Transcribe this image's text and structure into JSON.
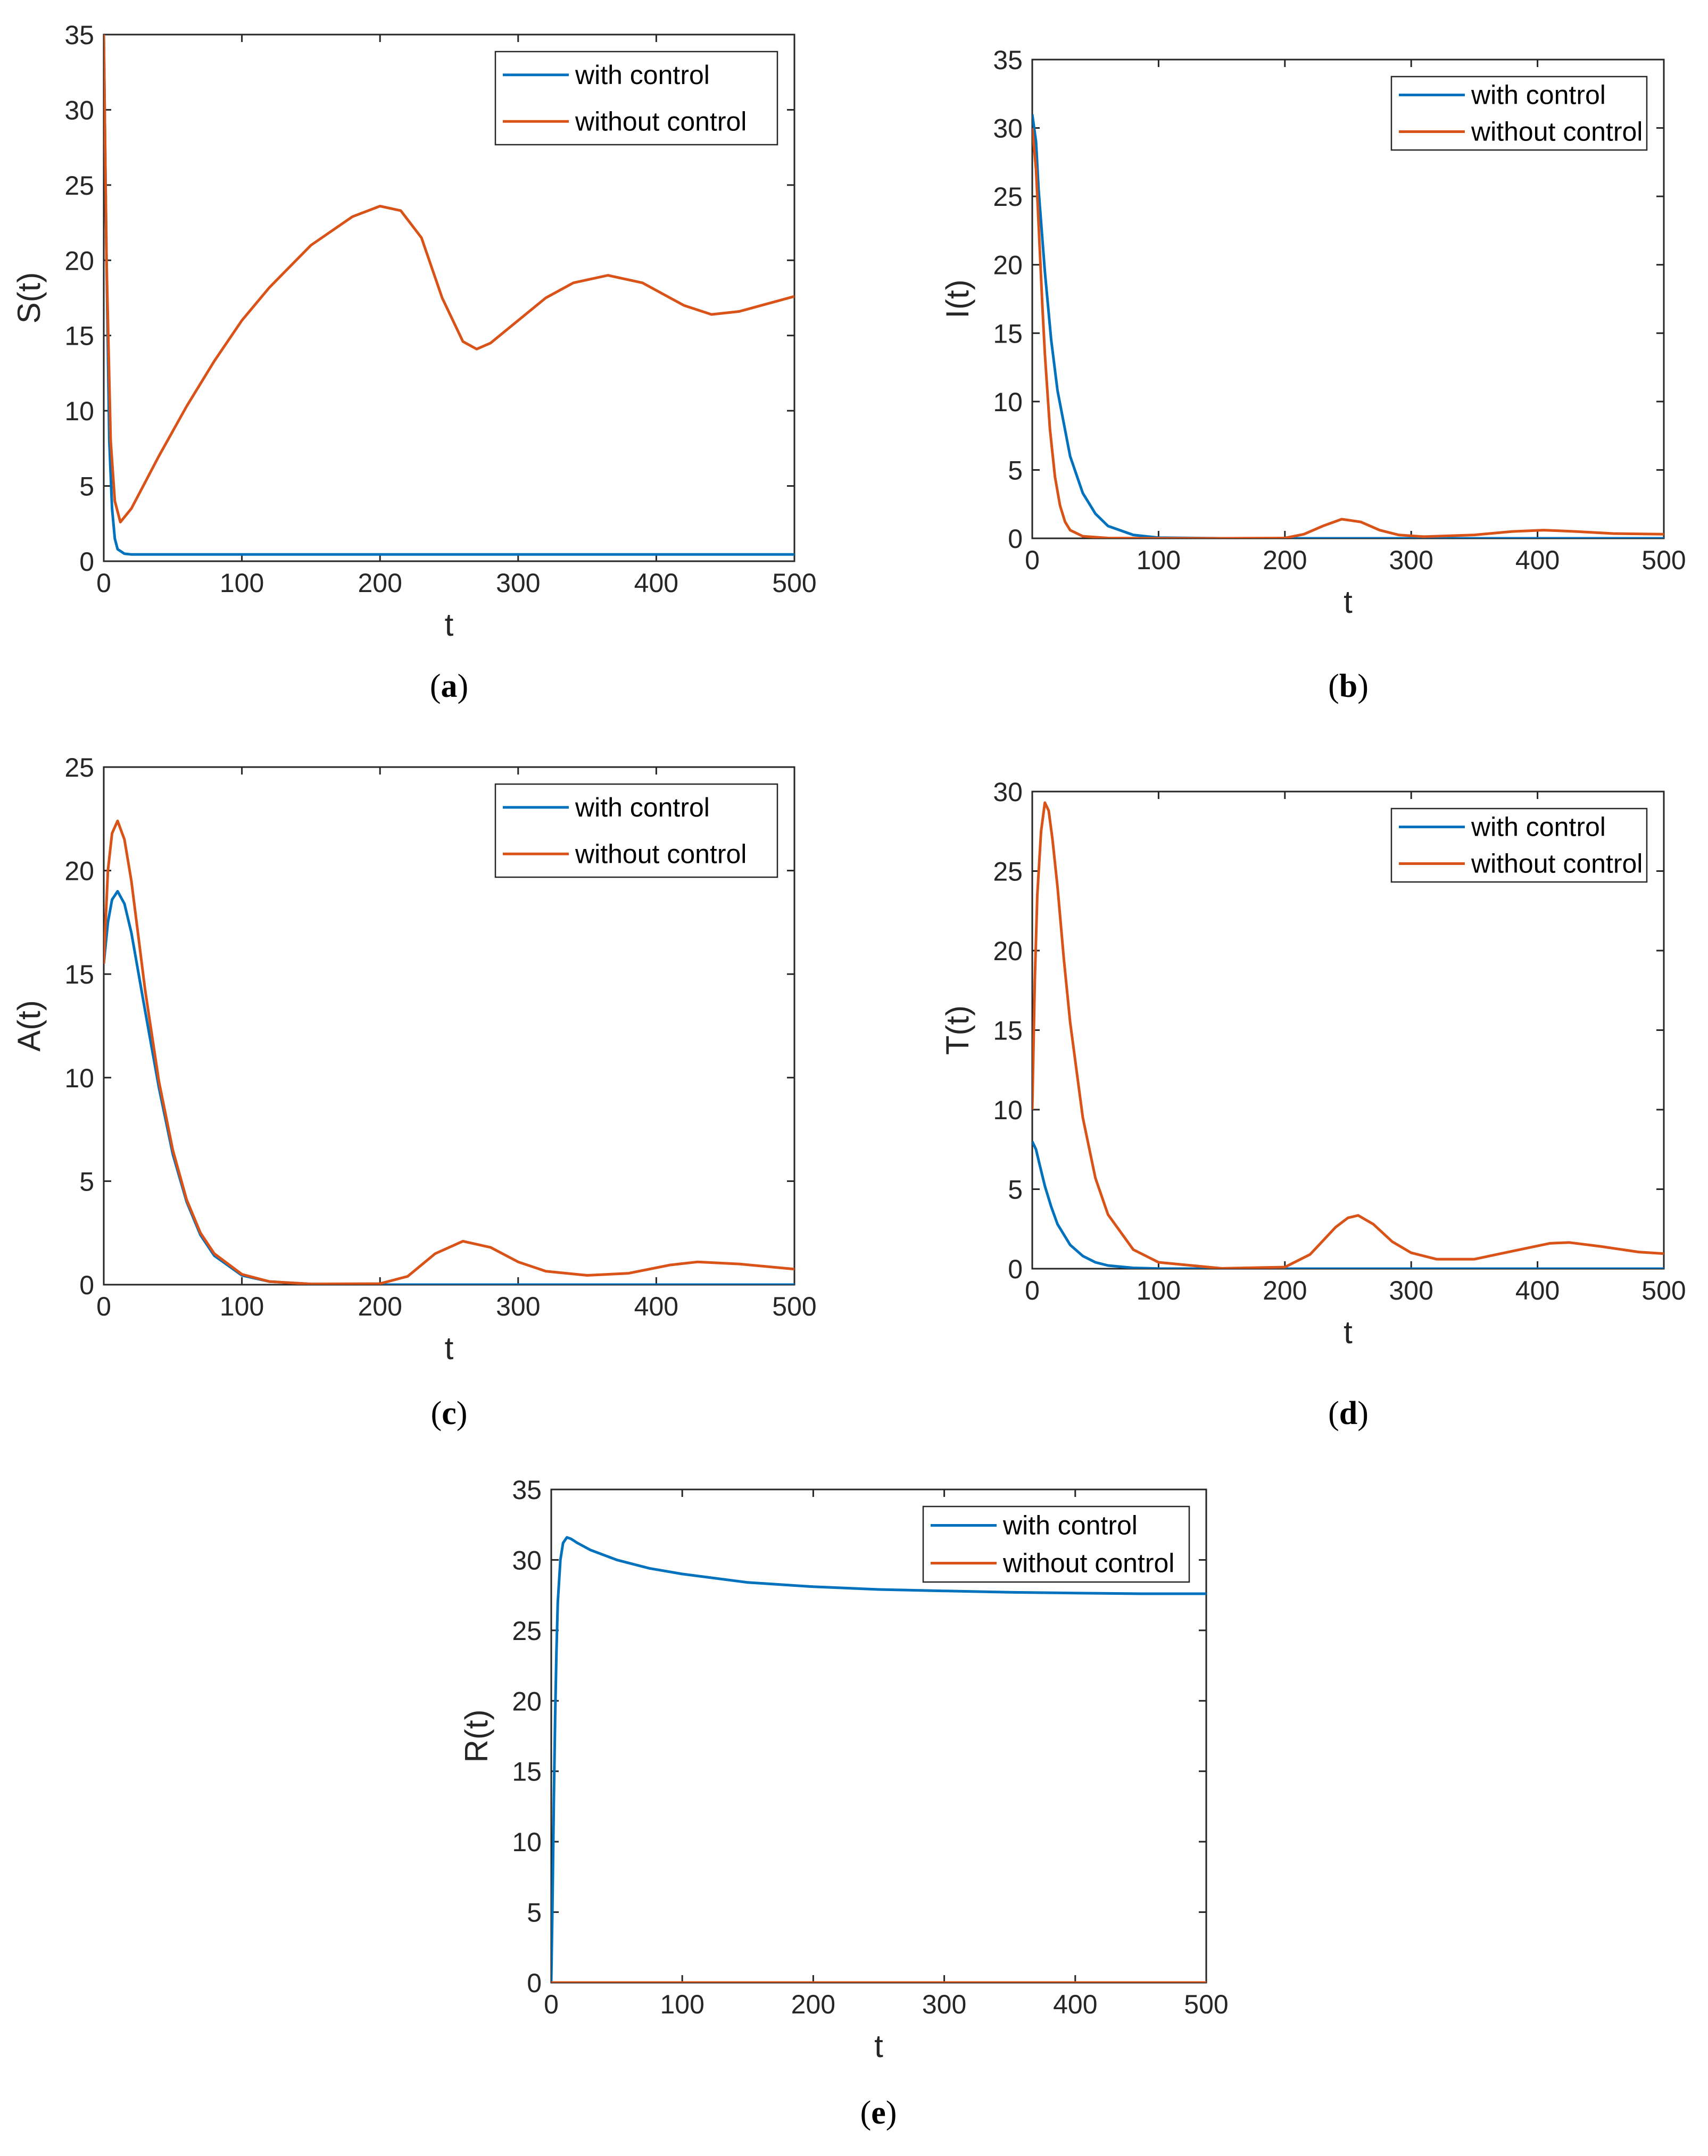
{
  "colors": {
    "with_control": "#0072BD",
    "without_control": "#D95319"
  },
  "chart_data": [
    {
      "id": "a",
      "type": "line",
      "caption_letter": "a",
      "xlabel": "t",
      "ylabel": "S(t)",
      "xlim": [
        0,
        500
      ],
      "ylim": [
        0,
        35
      ],
      "xticks": [
        "0",
        "100",
        "200",
        "300",
        "400",
        "500"
      ],
      "yticks": [
        "0",
        "5",
        "10",
        "15",
        "20",
        "25",
        "30",
        "35"
      ],
      "legend_position": "top-right",
      "grid": false,
      "series": [
        {
          "name": "with control",
          "color": "#0072BD",
          "x": [
            0,
            2,
            4,
            6,
            8,
            10,
            15,
            20,
            30,
            50,
            100,
            200,
            300,
            400,
            500
          ],
          "y": [
            35,
            20,
            8,
            3.5,
            1.5,
            0.8,
            0.5,
            0.45,
            0.45,
            0.45,
            0.45,
            0.45,
            0.45,
            0.45,
            0.45
          ]
        },
        {
          "name": "without control",
          "color": "#D95319",
          "x": [
            0,
            2,
            5,
            8,
            12,
            20,
            40,
            60,
            80,
            100,
            120,
            150,
            180,
            200,
            215,
            230,
            245,
            260,
            270,
            280,
            300,
            320,
            340,
            365,
            390,
            420,
            440,
            460,
            480,
            500
          ],
          "y": [
            35,
            20,
            8,
            4,
            2.6,
            3.5,
            7,
            10.3,
            13.3,
            16,
            18.2,
            21,
            22.9,
            23.6,
            23.3,
            21.5,
            17.5,
            14.6,
            14.1,
            14.5,
            16,
            17.5,
            18.5,
            19,
            18.5,
            17,
            16.4,
            16.6,
            17.1,
            17.6
          ]
        }
      ]
    },
    {
      "id": "b",
      "type": "line",
      "caption_letter": "b",
      "xlabel": "t",
      "ylabel": "I(t)",
      "xlim": [
        0,
        500
      ],
      "ylim": [
        0,
        35
      ],
      "xticks": [
        "0",
        "100",
        "200",
        "300",
        "400",
        "500"
      ],
      "yticks": [
        "0",
        "5",
        "10",
        "15",
        "20",
        "25",
        "30",
        "35"
      ],
      "legend_position": "top-right",
      "grid": false,
      "series": [
        {
          "name": "with control",
          "color": "#0072BD",
          "x": [
            0,
            3,
            5,
            10,
            15,
            20,
            30,
            40,
            50,
            60,
            80,
            100,
            150,
            200,
            300,
            400,
            500
          ],
          "y": [
            31,
            29,
            25.5,
            19.5,
            14.5,
            10.8,
            6,
            3.3,
            1.8,
            0.9,
            0.25,
            0.05,
            0,
            0,
            0,
            0,
            0
          ]
        },
        {
          "name": "without control",
          "color": "#D95319",
          "x": [
            0,
            3,
            5,
            8,
            10,
            14,
            18,
            22,
            26,
            30,
            40,
            60,
            100,
            150,
            200,
            215,
            230,
            245,
            260,
            275,
            290,
            310,
            350,
            380,
            405,
            430,
            460,
            500
          ],
          "y": [
            30,
            27,
            23,
            17,
            13.5,
            8,
            4.5,
            2.4,
            1.2,
            0.6,
            0.15,
            0.02,
            0,
            0,
            0.02,
            0.3,
            0.9,
            1.4,
            1.2,
            0.6,
            0.25,
            0.12,
            0.25,
            0.5,
            0.6,
            0.5,
            0.35,
            0.3
          ]
        }
      ]
    },
    {
      "id": "c",
      "type": "line",
      "caption_letter": "c",
      "xlabel": "t",
      "ylabel": "A(t)",
      "xlim": [
        0,
        500
      ],
      "ylim": [
        0,
        25
      ],
      "xticks": [
        "0",
        "100",
        "200",
        "300",
        "400",
        "500"
      ],
      "yticks": [
        "0",
        "5",
        "10",
        "15",
        "20",
        "25"
      ],
      "legend_position": "top-right",
      "grid": false,
      "series": [
        {
          "name": "with control",
          "color": "#0072BD",
          "x": [
            0,
            3,
            6,
            10,
            15,
            20,
            30,
            40,
            50,
            60,
            70,
            80,
            100,
            120,
            150,
            200,
            300,
            400,
            500
          ],
          "y": [
            15.5,
            17.5,
            18.6,
            19,
            18.4,
            17,
            13.2,
            9.5,
            6.3,
            4,
            2.4,
            1.4,
            0.45,
            0.15,
            0.03,
            0,
            0,
            0,
            0
          ]
        },
        {
          "name": "without control",
          "color": "#D95319",
          "x": [
            0,
            3,
            6,
            10,
            15,
            20,
            30,
            40,
            50,
            60,
            70,
            80,
            100,
            120,
            150,
            200,
            220,
            240,
            260,
            280,
            300,
            320,
            350,
            380,
            410,
            430,
            460,
            500
          ],
          "y": [
            15.5,
            20,
            21.8,
            22.4,
            21.5,
            19.5,
            14.2,
            9.8,
            6.5,
            4.1,
            2.5,
            1.5,
            0.5,
            0.15,
            0.03,
            0.05,
            0.4,
            1.5,
            2.1,
            1.8,
            1.1,
            0.65,
            0.45,
            0.55,
            0.95,
            1.1,
            1,
            0.75
          ]
        }
      ]
    },
    {
      "id": "d",
      "type": "line",
      "caption_letter": "d",
      "xlabel": "t",
      "ylabel": "T(t)",
      "xlim": [
        0,
        500
      ],
      "ylim": [
        0,
        30
      ],
      "xticks": [
        "0",
        "100",
        "200",
        "300",
        "400",
        "500"
      ],
      "yticks": [
        "0",
        "5",
        "10",
        "15",
        "20",
        "25",
        "30"
      ],
      "legend_position": "top-right",
      "grid": false,
      "series": [
        {
          "name": "with control",
          "color": "#0072BD",
          "x": [
            0,
            3,
            6,
            10,
            15,
            20,
            30,
            40,
            50,
            60,
            80,
            100,
            150,
            200,
            300,
            400,
            500
          ],
          "y": [
            8,
            7.5,
            6.5,
            5.2,
            3.9,
            2.8,
            1.5,
            0.8,
            0.4,
            0.2,
            0.05,
            0.01,
            0,
            0,
            0,
            0,
            0
          ]
        },
        {
          "name": "without control",
          "color": "#D95319",
          "x": [
            0,
            2,
            4,
            7,
            10,
            13,
            16,
            20,
            25,
            30,
            40,
            50,
            60,
            80,
            100,
            150,
            200,
            220,
            240,
            250,
            258,
            270,
            285,
            300,
            320,
            350,
            380,
            410,
            425,
            450,
            480,
            500
          ],
          "y": [
            10,
            18,
            23.5,
            27.5,
            29.3,
            28.8,
            27,
            24,
            19.5,
            15.5,
            9.5,
            5.7,
            3.4,
            1.2,
            0.4,
            0.02,
            0.1,
            0.9,
            2.6,
            3.2,
            3.35,
            2.8,
            1.7,
            1,
            0.6,
            0.6,
            1.1,
            1.6,
            1.65,
            1.4,
            1.05,
            0.95
          ]
        }
      ]
    },
    {
      "id": "e",
      "type": "line",
      "caption_letter": "e",
      "xlabel": "t",
      "ylabel": "R(t)",
      "xlim": [
        0,
        500
      ],
      "ylim": [
        0,
        35
      ],
      "xticks": [
        "0",
        "100",
        "200",
        "300",
        "400",
        "500"
      ],
      "yticks": [
        "0",
        "5",
        "10",
        "15",
        "20",
        "25",
        "30",
        "35"
      ],
      "legend_position": "top-right",
      "grid": false,
      "series": [
        {
          "name": "with control",
          "color": "#0072BD",
          "x": [
            0,
            1,
            2,
            3,
            4,
            5,
            7,
            9,
            12,
            15,
            20,
            30,
            50,
            75,
            100,
            150,
            200,
            250,
            300,
            350,
            400,
            450,
            500
          ],
          "y": [
            0,
            6,
            13,
            19,
            23.5,
            27,
            30,
            31.2,
            31.6,
            31.5,
            31.2,
            30.7,
            30,
            29.4,
            29,
            28.4,
            28.1,
            27.9,
            27.8,
            27.7,
            27.65,
            27.6,
            27.6
          ]
        },
        {
          "name": "without control",
          "color": "#D95319",
          "x": [
            0,
            500
          ],
          "y": [
            0,
            0
          ]
        }
      ]
    }
  ]
}
